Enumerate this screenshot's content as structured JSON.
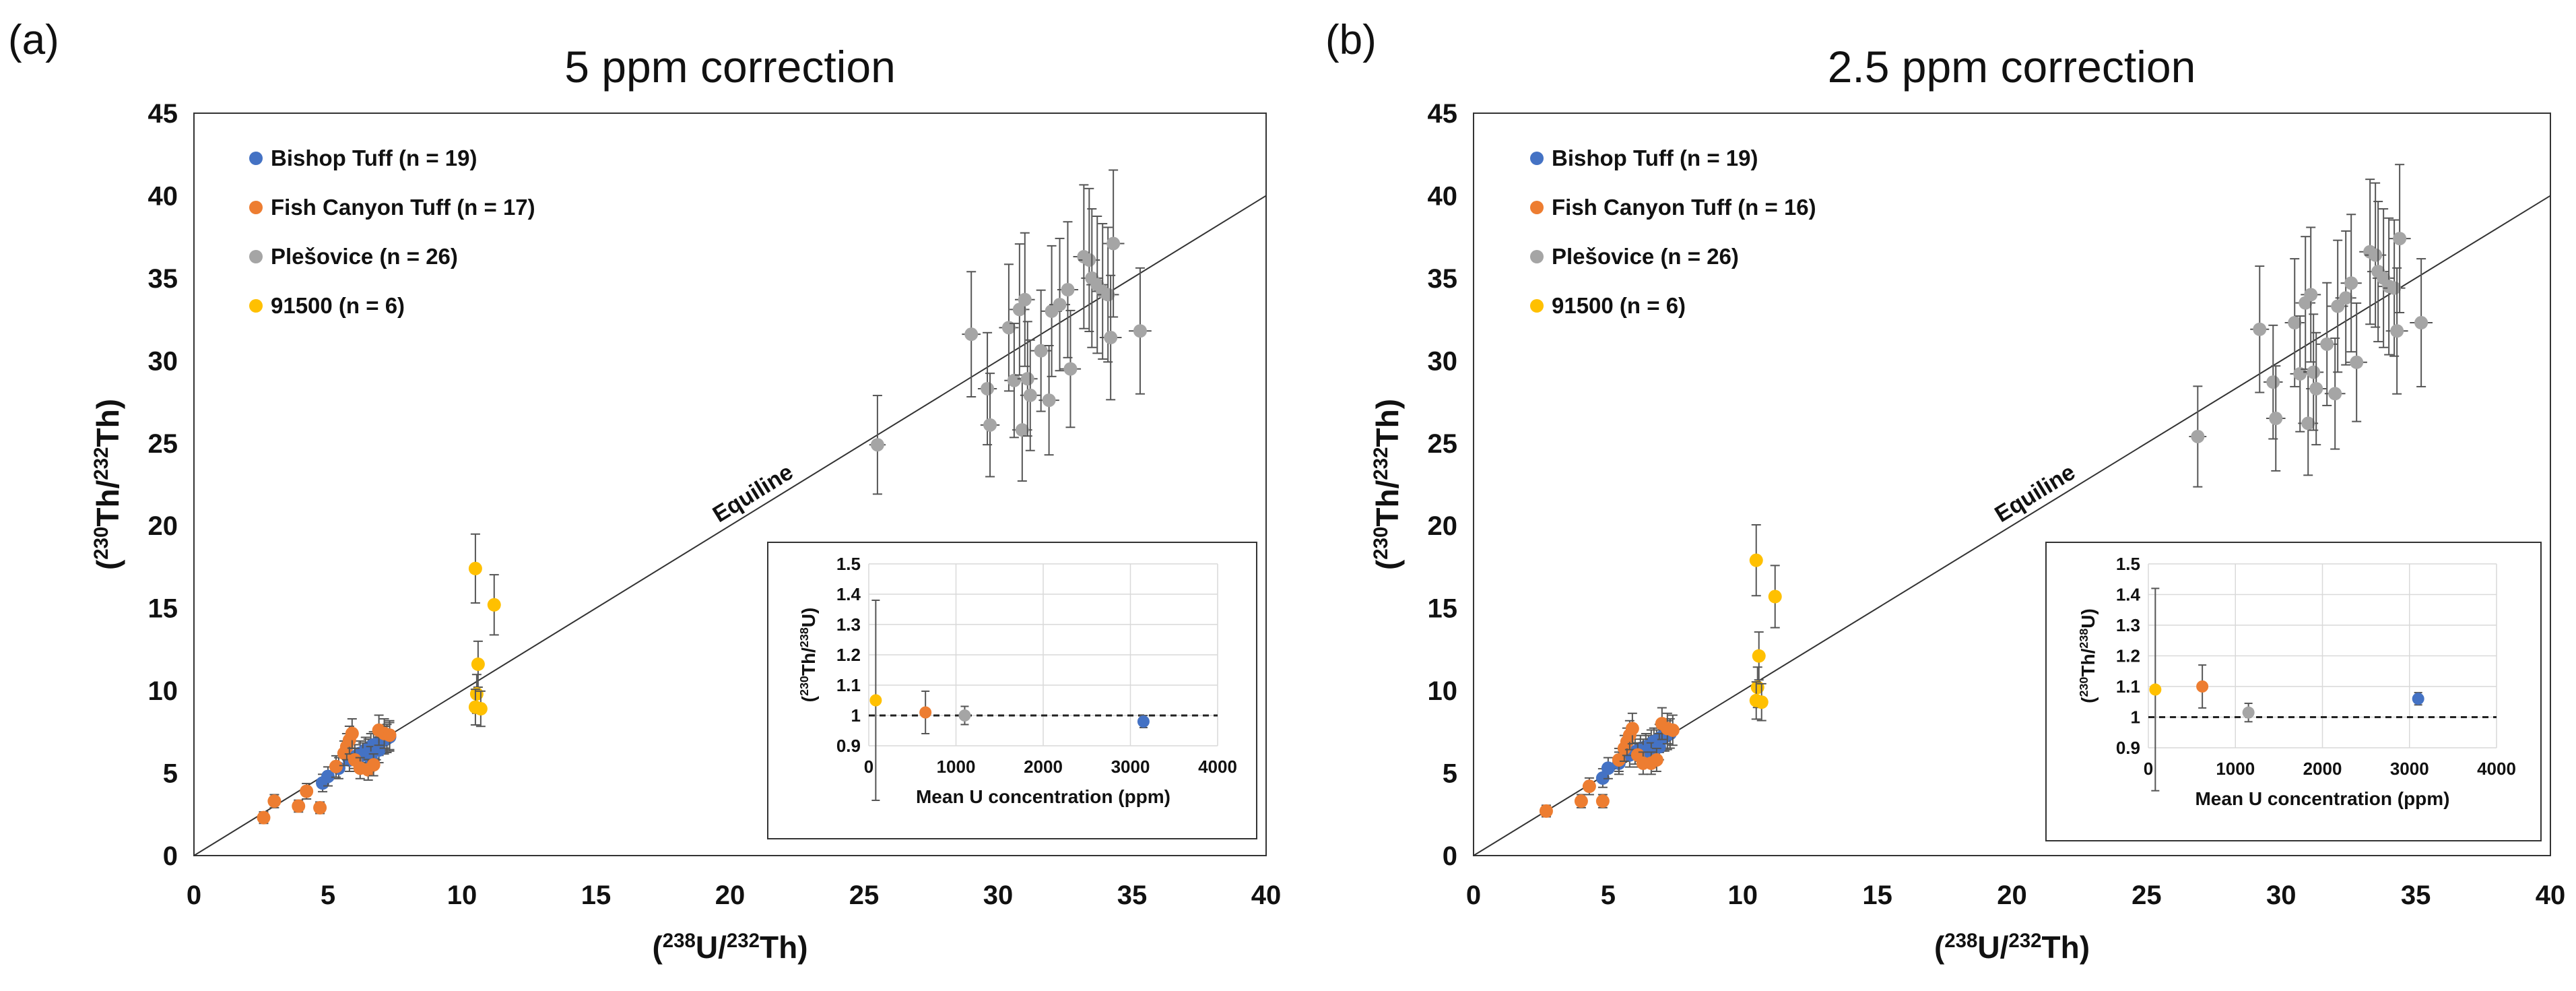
{
  "chart_data": [
    {
      "type": "scatter",
      "panel_label": "(a)",
      "title": "5 ppm correction",
      "xlabel": {
        "prefix": "(",
        "sup1": "238",
        "mid": "U/",
        "sup2": "232",
        "suffix": "Th)"
      },
      "ylabel": {
        "prefix": "(",
        "sup1": "230",
        "mid": "Th/",
        "sup2": "232",
        "suffix": "Th)"
      },
      "xlim": [
        0,
        40
      ],
      "ylim": [
        0,
        45
      ],
      "xticks": [
        "0",
        "5",
        "10",
        "15",
        "20",
        "25",
        "30",
        "35",
        "40"
      ],
      "yticks": [
        "0",
        "5",
        "10",
        "15",
        "20",
        "25",
        "30",
        "35",
        "40",
        "45"
      ],
      "equiline_label": "Equiline",
      "legend_position": "top-left",
      "series": [
        {
          "name": "Bishop Tuff (n = 19)",
          "color": "#4472C4",
          "points": [
            [
              4.8,
              4.4
            ],
            [
              5.0,
              4.8
            ],
            [
              5.4,
              5.3
            ],
            [
              5.8,
              5.8
            ],
            [
              6.0,
              6.0
            ],
            [
              6.2,
              6.2
            ],
            [
              6.4,
              6.4
            ],
            [
              6.5,
              6.3
            ],
            [
              6.6,
              6.6
            ],
            [
              6.7,
              6.7
            ],
            [
              6.8,
              6.6
            ],
            [
              6.9,
              6.9
            ],
            [
              7.0,
              7.0
            ],
            [
              7.1,
              7.0
            ],
            [
              7.2,
              7.1
            ],
            [
              6.3,
              6.1
            ],
            [
              6.6,
              5.9
            ],
            [
              6.9,
              6.4
            ],
            [
              7.3,
              7.2
            ]
          ]
        },
        {
          "name": "Fish Canyon Tuff (n = 17)",
          "color": "#ED7D31",
          "points": [
            [
              2.6,
              2.3
            ],
            [
              3.0,
              3.3
            ],
            [
              3.9,
              3.0
            ],
            [
              4.7,
              2.9
            ],
            [
              4.2,
              3.9
            ],
            [
              5.3,
              5.4
            ],
            [
              5.6,
              6.2
            ],
            [
              5.7,
              6.6
            ],
            [
              5.8,
              7.0
            ],
            [
              5.9,
              7.4
            ],
            [
              6.0,
              5.8
            ],
            [
              6.2,
              5.3
            ],
            [
              6.5,
              5.2
            ],
            [
              6.7,
              5.5
            ],
            [
              6.9,
              7.6
            ],
            [
              7.1,
              7.4
            ],
            [
              7.3,
              7.3
            ]
          ]
        },
        {
          "name": "Plešovice (n = 26)",
          "color": "#A5A5A5",
          "points": [
            [
              25.5,
              24.9
            ],
            [
              29.0,
              31.6
            ],
            [
              29.6,
              28.3
            ],
            [
              29.7,
              26.1
            ],
            [
              30.4,
              32.0
            ],
            [
              30.6,
              28.8
            ],
            [
              30.8,
              33.1
            ],
            [
              30.9,
              25.8
            ],
            [
              31.0,
              33.7
            ],
            [
              31.1,
              28.9
            ],
            [
              31.2,
              27.9
            ],
            [
              31.6,
              30.6
            ],
            [
              31.9,
              27.6
            ],
            [
              32.0,
              33.0
            ],
            [
              32.3,
              33.4
            ],
            [
              32.6,
              34.3
            ],
            [
              32.7,
              29.5
            ],
            [
              33.2,
              36.3
            ],
            [
              33.4,
              36.1
            ],
            [
              33.5,
              35.0
            ],
            [
              33.7,
              34.6
            ],
            [
              33.9,
              34.2
            ],
            [
              34.1,
              34.0
            ],
            [
              34.2,
              31.4
            ],
            [
              34.3,
              37.1
            ],
            [
              35.3,
              31.8
            ]
          ]
        },
        {
          "name": "91500 (n = 6)",
          "color": "#FFC000",
          "points": [
            [
              10.5,
              17.4
            ],
            [
              10.6,
              11.6
            ],
            [
              10.55,
              9.8
            ],
            [
              10.5,
              9.0
            ],
            [
              10.7,
              8.9
            ],
            [
              11.2,
              15.2
            ]
          ]
        }
      ],
      "inset": {
        "xlabel": "Mean U concentration (ppm)",
        "ylabel": {
          "prefix": "(",
          "sup1": "230",
          "mid": "Th/",
          "sup2": "238",
          "suffix": "U)"
        },
        "xlim": [
          0,
          4000
        ],
        "ylim": [
          0.9,
          1.5
        ],
        "xticks": [
          "0",
          "1000",
          "2000",
          "3000",
          "4000"
        ],
        "yticks": [
          "0.9",
          "1",
          "1.1",
          "1.2",
          "1.3",
          "1.4",
          "1.5"
        ],
        "reference_line": 1,
        "points": [
          {
            "x": 80,
            "y": 1.05,
            "err": 0.33,
            "color": "#FFC000"
          },
          {
            "x": 650,
            "y": 1.01,
            "err": 0.07,
            "color": "#ED7D31"
          },
          {
            "x": 1100,
            "y": 1.0,
            "err": 0.03,
            "color": "#A5A5A5"
          },
          {
            "x": 3150,
            "y": 0.98,
            "err": 0.02,
            "color": "#4472C4"
          }
        ]
      }
    },
    {
      "type": "scatter",
      "panel_label": "(b)",
      "title": "2.5 ppm correction",
      "xlabel": {
        "prefix": "(",
        "sup1": "238",
        "mid": "U/",
        "sup2": "232",
        "suffix": "Th)"
      },
      "ylabel": {
        "prefix": "(",
        "sup1": "230",
        "mid": "Th/",
        "sup2": "232",
        "suffix": "Th)"
      },
      "xlim": [
        0,
        40
      ],
      "ylim": [
        0,
        45
      ],
      "xticks": [
        "0",
        "5",
        "10",
        "15",
        "20",
        "25",
        "30",
        "35",
        "40"
      ],
      "yticks": [
        "0",
        "5",
        "10",
        "15",
        "20",
        "25",
        "30",
        "35",
        "40",
        "45"
      ],
      "equiline_label": "Equiline",
      "legend_position": "top-left",
      "series": [
        {
          "name": "Bishop Tuff (n = 19)",
          "color": "#4472C4",
          "points": [
            [
              4.8,
              4.7
            ],
            [
              5.0,
              5.3
            ],
            [
              5.4,
              5.6
            ],
            [
              5.8,
              6.1
            ],
            [
              6.0,
              6.3
            ],
            [
              6.2,
              6.5
            ],
            [
              6.4,
              6.6
            ],
            [
              6.5,
              6.5
            ],
            [
              6.6,
              6.8
            ],
            [
              6.7,
              6.9
            ],
            [
              6.8,
              6.8
            ],
            [
              6.9,
              7.1
            ],
            [
              7.0,
              7.2
            ],
            [
              7.1,
              7.2
            ],
            [
              7.2,
              7.3
            ],
            [
              6.3,
              6.3
            ],
            [
              6.6,
              6.1
            ],
            [
              6.9,
              6.6
            ],
            [
              7.3,
              7.4
            ]
          ]
        },
        {
          "name": "Fish Canyon Tuff (n = 16)",
          "color": "#ED7D31",
          "points": [
            [
              2.7,
              2.7
            ],
            [
              4.0,
              3.3
            ],
            [
              4.8,
              3.3
            ],
            [
              4.3,
              4.2
            ],
            [
              5.4,
              5.8
            ],
            [
              5.6,
              6.5
            ],
            [
              5.7,
              6.9
            ],
            [
              5.8,
              7.3
            ],
            [
              5.9,
              7.7
            ],
            [
              6.1,
              6.1
            ],
            [
              6.3,
              5.6
            ],
            [
              6.6,
              5.6
            ],
            [
              6.8,
              5.8
            ],
            [
              7.0,
              8.0
            ],
            [
              7.2,
              7.7
            ],
            [
              7.4,
              7.6
            ]
          ]
        },
        {
          "name": "Plešovice (n = 26)",
          "color": "#A5A5A5",
          "points": [
            [
              26.9,
              25.4
            ],
            [
              29.2,
              31.9
            ],
            [
              29.7,
              28.7
            ],
            [
              29.8,
              26.5
            ],
            [
              30.5,
              32.3
            ],
            [
              30.7,
              29.2
            ],
            [
              30.9,
              33.5
            ],
            [
              31.0,
              26.2
            ],
            [
              31.1,
              34.0
            ],
            [
              31.2,
              29.3
            ],
            [
              31.3,
              28.3
            ],
            [
              31.7,
              31.0
            ],
            [
              32.0,
              28.0
            ],
            [
              32.1,
              33.3
            ],
            [
              32.4,
              33.8
            ],
            [
              32.6,
              34.7
            ],
            [
              32.8,
              29.9
            ],
            [
              33.3,
              36.6
            ],
            [
              33.5,
              36.4
            ],
            [
              33.6,
              35.4
            ],
            [
              33.8,
              35.0
            ],
            [
              34.0,
              34.5
            ],
            [
              34.2,
              34.4
            ],
            [
              34.3,
              31.8
            ],
            [
              34.4,
              37.4
            ],
            [
              35.2,
              32.3
            ]
          ]
        },
        {
          "name": "91500 (n = 6)",
          "color": "#FFC000",
          "points": [
            [
              10.5,
              17.9
            ],
            [
              10.6,
              12.1
            ],
            [
              10.55,
              10.2
            ],
            [
              10.5,
              9.4
            ],
            [
              10.7,
              9.3
            ],
            [
              11.2,
              15.7
            ]
          ]
        }
      ],
      "inset": {
        "xlabel": "Mean U concentration (ppm)",
        "ylabel": {
          "prefix": "(",
          "sup1": "230",
          "mid": "Th/",
          "sup2": "238",
          "suffix": "U)"
        },
        "xlim": [
          0,
          4000
        ],
        "ylim": [
          0.9,
          1.5
        ],
        "xticks": [
          "0",
          "1000",
          "2000",
          "3000",
          "4000"
        ],
        "yticks": [
          "0.9",
          "1",
          "1.1",
          "1.2",
          "1.3",
          "1.4",
          "1.5"
        ],
        "reference_line": 1,
        "points": [
          {
            "x": 80,
            "y": 1.09,
            "err": 0.33,
            "color": "#FFC000"
          },
          {
            "x": 620,
            "y": 1.1,
            "err": 0.07,
            "color": "#ED7D31"
          },
          {
            "x": 1150,
            "y": 1.015,
            "err": 0.03,
            "color": "#A5A5A5"
          },
          {
            "x": 3100,
            "y": 1.06,
            "err": 0.02,
            "color": "#4472C4"
          }
        ]
      }
    }
  ]
}
